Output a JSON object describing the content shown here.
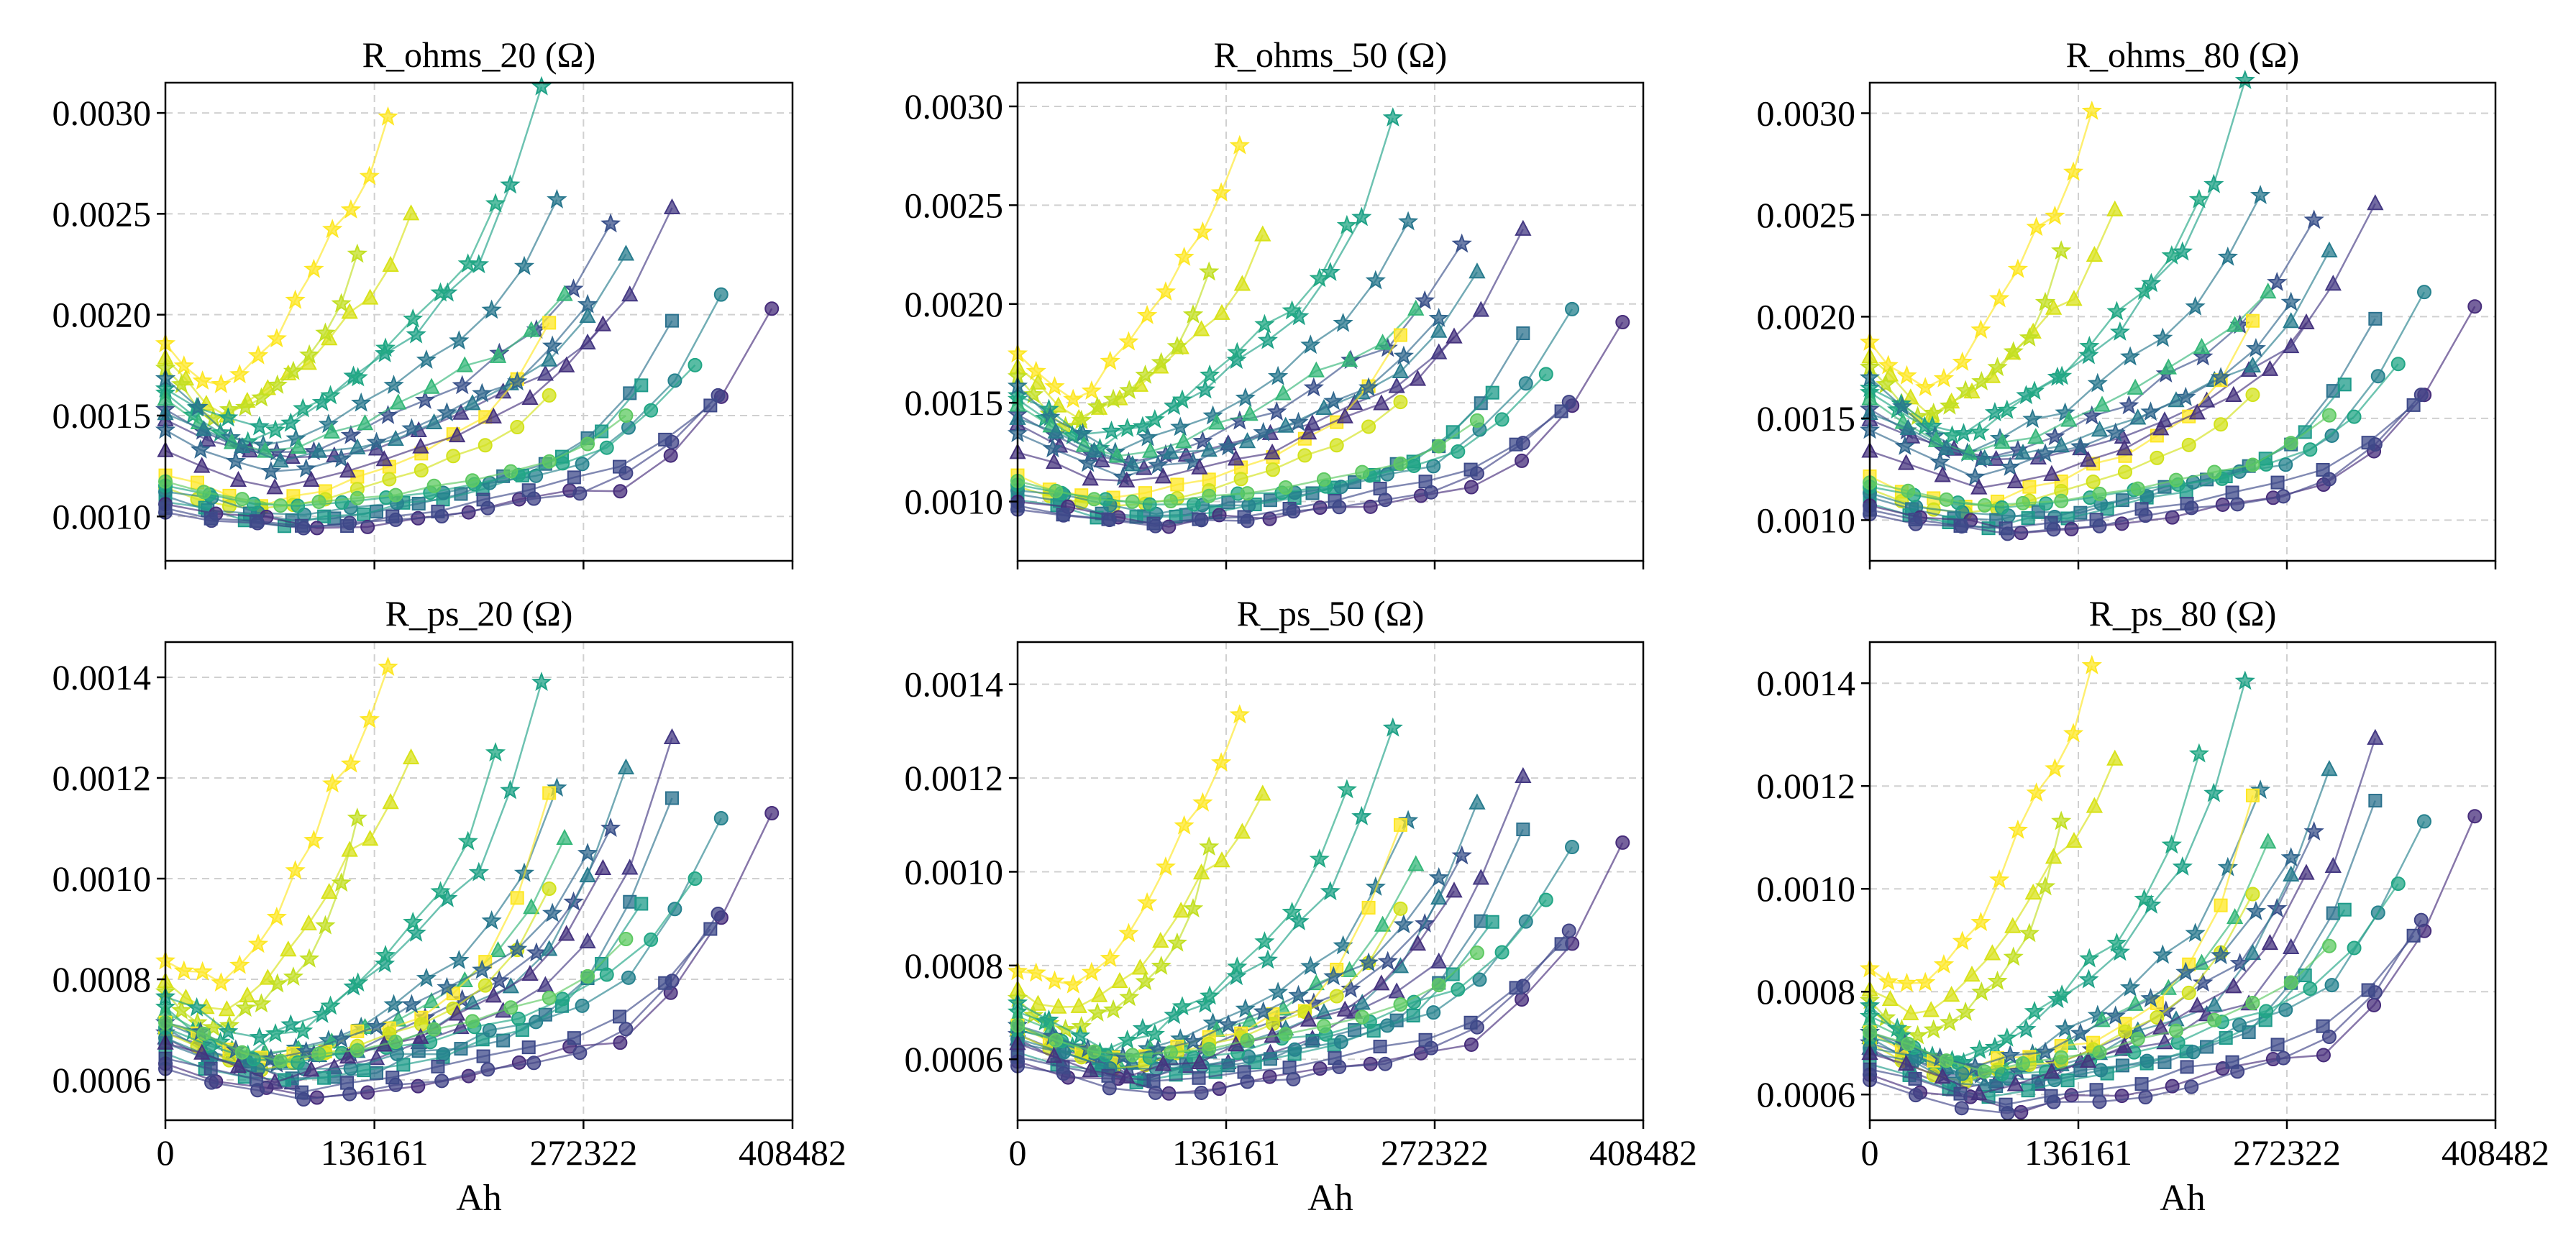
{
  "figure": {
    "xlabel": "Ah",
    "x_ticks": [
      0,
      136161,
      272322,
      408482
    ],
    "colormap": [
      "#440154",
      "#3b528b",
      "#21918c",
      "#5ec962",
      "#fde725"
    ],
    "marker_names": [
      "circle",
      "square",
      "triangle",
      "star"
    ]
  },
  "chart_data": [
    {
      "type": "line",
      "title": "R_ohms_20 (Ω)",
      "xlim": [
        0,
        408482
      ],
      "ylim": [
        0.00078,
        0.00315
      ],
      "yticks": [
        "0.0010",
        "0.0015",
        "0.0020",
        "0.0025",
        "0.0030"
      ],
      "ytick_values": [
        0.001,
        0.0015,
        0.002,
        0.0025,
        0.003
      ],
      "xlabel": "",
      "ylabel": ""
    },
    {
      "type": "line",
      "title": "R_ohms_50 (Ω)",
      "xlim": [
        0,
        408482
      ],
      "ylim": [
        0.0007,
        0.00312
      ],
      "yticks": [
        "0.0010",
        "0.0015",
        "0.0020",
        "0.0025",
        "0.0030"
      ],
      "ytick_values": [
        0.001,
        0.0015,
        0.002,
        0.0025,
        0.003
      ],
      "xlabel": "",
      "ylabel": ""
    },
    {
      "type": "line",
      "title": "R_ohms_80 (Ω)",
      "xlim": [
        0,
        408482
      ],
      "ylim": [
        0.0008,
        0.00315
      ],
      "yticks": [
        "0.0010",
        "0.0015",
        "0.0020",
        "0.0025",
        "0.0030"
      ],
      "ytick_values": [
        0.001,
        0.0015,
        0.002,
        0.0025,
        0.003
      ],
      "xlabel": "",
      "ylabel": ""
    },
    {
      "type": "line",
      "title": "R_ps_20 (Ω)",
      "xlim": [
        0,
        408482
      ],
      "ylim": [
        0.00052,
        0.00147
      ],
      "yticks": [
        "0.0006",
        "0.0008",
        "0.0010",
        "0.0012",
        "0.0014"
      ],
      "ytick_values": [
        0.0006,
        0.0008,
        0.001,
        0.0012,
        0.0014
      ],
      "xlabel": "Ah",
      "ylabel": ""
    },
    {
      "type": "line",
      "title": "R_ps_50 (Ω)",
      "xlim": [
        0,
        408482
      ],
      "ylim": [
        0.00047,
        0.00149
      ],
      "yticks": [
        "0.0006",
        "0.0008",
        "0.0010",
        "0.0012",
        "0.0014"
      ],
      "ytick_values": [
        0.0006,
        0.0008,
        0.001,
        0.0012,
        0.0014
      ],
      "xlabel": "Ah",
      "ylabel": ""
    },
    {
      "type": "line",
      "title": "R_ps_80 (Ω)",
      "xlim": [
        0,
        408482
      ],
      "ylim": [
        0.00055,
        0.00148
      ],
      "yticks": [
        "0.0006",
        "0.0008",
        "0.0010",
        "0.0012",
        "0.0014"
      ],
      "ytick_values": [
        0.0006,
        0.0008,
        0.001,
        0.0012,
        0.0014
      ],
      "xlabel": "Ah",
      "ylabel": ""
    }
  ],
  "cells": [
    {
      "color": "#fde725",
      "marker": "star",
      "end_ah": 145000,
      "ohms": [
        0.00182,
        0.0016,
        0.0024,
        0.00298
      ],
      "ps": [
        0.00082,
        0.00079,
        0.00118,
        0.00142
      ]
    },
    {
      "color": "#d8e219",
      "marker": "triangle",
      "end_ah": 160000,
      "ohms": [
        0.00175,
        0.0015,
        0.002,
        0.0025
      ],
      "ps": [
        0.00078,
        0.00074,
        0.00105,
        0.00124
      ]
    },
    {
      "color": "#c2df23",
      "marker": "star",
      "end_ah": 125000,
      "ohms": [
        0.0017,
        0.00148,
        0.0018,
        0.0023
      ],
      "ps": [
        0.00076,
        0.0007,
        0.00085,
        0.00112
      ]
    },
    {
      "color": "#1fa187",
      "marker": "star",
      "end_ah": 245000,
      "ohms": [
        0.0016,
        0.0014,
        0.0021,
        0.00313
      ],
      "ps": [
        0.00075,
        0.00066,
        0.00095,
        0.00139
      ]
    },
    {
      "color": "#22a884",
      "marker": "star",
      "end_ah": 215000,
      "ohms": [
        0.00158,
        0.00136,
        0.002,
        0.00255
      ],
      "ps": [
        0.00073,
        0.00065,
        0.0009,
        0.00125
      ]
    },
    {
      "color": "#2a788e",
      "marker": "star",
      "end_ah": 255000,
      "ohms": [
        0.00165,
        0.00132,
        0.0019,
        0.00257
      ],
      "ps": [
        0.0007,
        0.00063,
        0.00085,
        0.00118
      ]
    },
    {
      "color": "#3b528b",
      "marker": "star",
      "end_ah": 290000,
      "ohms": [
        0.0015,
        0.00128,
        0.0018,
        0.00245
      ],
      "ps": [
        0.00068,
        0.00062,
        0.0008,
        0.0011
      ]
    },
    {
      "color": "#443983",
      "marker": "triangle",
      "end_ah": 330000,
      "ohms": [
        0.00145,
        0.00125,
        0.0017,
        0.00253
      ],
      "ps": [
        0.00067,
        0.0006,
        0.00078,
        0.00128
      ]
    },
    {
      "color": "#35b779",
      "marker": "triangle",
      "end_ah": 260000,
      "ohms": [
        0.00155,
        0.0013,
        0.00175,
        0.0021
      ],
      "ps": [
        0.00072,
        0.00064,
        0.0008,
        0.00108
      ]
    },
    {
      "color": "#287c8e",
      "marker": "triangle",
      "end_ah": 300000,
      "ohms": [
        0.00148,
        0.00126,
        0.00165,
        0.0023
      ],
      "ps": [
        0.00069,
        0.00062,
        0.00078,
        0.00122
      ]
    },
    {
      "color": "#fde725",
      "marker": "square",
      "end_ah": 250000,
      "ohms": [
        0.00118,
        0.00106,
        0.0014,
        0.00196
      ],
      "ps": [
        0.0007,
        0.00064,
        0.00076,
        0.00117
      ]
    },
    {
      "color": "#d2e21b",
      "marker": "circle",
      "end_ah": 250000,
      "ohms": [
        0.00112,
        0.00102,
        0.0013,
        0.0016
      ],
      "ps": [
        0.00068,
        0.00062,
        0.00074,
        0.00098
      ]
    },
    {
      "color": "#2c728e",
      "marker": "square",
      "end_ah": 330000,
      "ohms": [
        0.00108,
        0.00098,
        0.00125,
        0.00197
      ],
      "ps": [
        0.00066,
        0.0006,
        0.00072,
        0.00116
      ]
    },
    {
      "color": "#1e9b8a",
      "marker": "square",
      "end_ah": 310000,
      "ohms": [
        0.00105,
        0.00096,
        0.0012,
        0.00165
      ],
      "ps": [
        0.00064,
        0.00059,
        0.0007,
        0.00095
      ]
    },
    {
      "color": "#26828e",
      "marker": "circle",
      "end_ah": 362000,
      "ohms": [
        0.0011,
        0.001,
        0.00128,
        0.0021
      ],
      "ps": [
        0.00067,
        0.00061,
        0.00075,
        0.00112
      ]
    },
    {
      "color": "#21a685",
      "marker": "circle",
      "end_ah": 345000,
      "ohms": [
        0.00113,
        0.00104,
        0.00126,
        0.00175
      ],
      "ps": [
        0.00069,
        0.00063,
        0.00076,
        0.001
      ]
    },
    {
      "color": "#472d7b",
      "marker": "circle",
      "end_ah": 395000,
      "ohms": [
        0.00104,
        0.00095,
        0.00115,
        0.00203
      ],
      "ps": [
        0.00062,
        0.00057,
        0.00068,
        0.00113
      ]
    },
    {
      "color": "#414487",
      "marker": "circle",
      "end_ah": 360000,
      "ohms": [
        0.001,
        0.00093,
        0.00112,
        0.0016
      ],
      "ps": [
        0.00061,
        0.00056,
        0.00066,
        0.00093
      ]
    },
    {
      "color": "#3e4a89",
      "marker": "square",
      "end_ah": 355000,
      "ohms": [
        0.00102,
        0.00094,
        0.00118,
        0.00155
      ],
      "ps": [
        0.00063,
        0.00058,
        0.00069,
        0.0009
      ]
    },
    {
      "color": "#31688e",
      "marker": "star",
      "end_ah": 275000,
      "ohms": [
        0.0014,
        0.0012,
        0.0016,
        0.00205
      ],
      "ps": [
        0.0007,
        0.00064,
        0.00082,
        0.00105
      ]
    },
    {
      "color": "#46337e",
      "marker": "triangle",
      "end_ah": 285000,
      "ohms": [
        0.0013,
        0.00115,
        0.0015,
        0.00195
      ],
      "ps": [
        0.00066,
        0.0006,
        0.00076,
        0.00102
      ]
    },
    {
      "color": "#5ec962",
      "marker": "circle",
      "end_ah": 300000,
      "ohms": [
        0.00115,
        0.00105,
        0.00122,
        0.0015
      ],
      "ps": [
        0.0007,
        0.00064,
        0.00074,
        0.00088
      ]
    }
  ]
}
